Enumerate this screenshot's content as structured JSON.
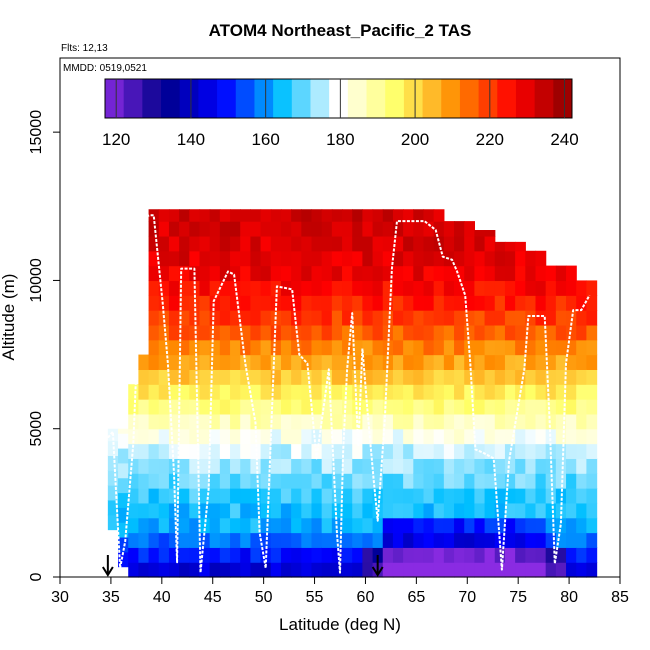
{
  "chart_data": {
    "type": "heatmap",
    "title": "ATOM4 Northeast_Pacific_2 TAS",
    "annotations": [
      "Flts: 12,13",
      "MMDD: 0519,0521"
    ],
    "xlabel": "Latitude (deg N)",
    "ylabel": "Altitude (m)",
    "xlim": [
      30,
      85
    ],
    "ylim": [
      0,
      17500
    ],
    "xticks": [
      30,
      35,
      40,
      45,
      50,
      55,
      60,
      65,
      70,
      75,
      80,
      85
    ],
    "yticks": [
      0,
      5000,
      10000,
      15000
    ],
    "colorbar": {
      "min": 117,
      "max": 242,
      "ticks": [
        120,
        140,
        160,
        180,
        200,
        220,
        240
      ],
      "colors": [
        "#8a2be2",
        "#00008b",
        "#0000ff",
        "#00bfff",
        "#ffffff",
        "#ffff66",
        "#ff8c00",
        "#ff0000",
        "#8b0000"
      ]
    },
    "arrows_at_latitude": [
      34.7,
      61.2
    ],
    "flight_track": {
      "lat": [
        34.7,
        35.2,
        35.9,
        36.4,
        37.2,
        38.1,
        38.8,
        39.2,
        40.1,
        40.6,
        41.2,
        41.5,
        41.9,
        43.2,
        43.8,
        44.6,
        45.1,
        46.5,
        47.1,
        48.2,
        49.2,
        49.6,
        50.2,
        51.3,
        52.8,
        53.5,
        54.3,
        55.2,
        56.4,
        57.2,
        57.5,
        57.8,
        58.2,
        58.7,
        59.3,
        59.7,
        60.2,
        60.8,
        61.2,
        61.9,
        62.6,
        63.1,
        64.0,
        65.8,
        66.9,
        67.6,
        68.5,
        69.0,
        69.8,
        70.3,
        70.8,
        71.5,
        72.6,
        73.4,
        74.1,
        75.6,
        76.0,
        76.8,
        77.6,
        78.1,
        78.6,
        79.2,
        79.7,
        80.4,
        81.2,
        82.0
      ],
      "alt": [
        4700,
        4900,
        300,
        1200,
        4500,
        12100,
        12200,
        12200,
        9200,
        7200,
        3500,
        500,
        10400,
        10400,
        150,
        3000,
        9300,
        10300,
        10200,
        7200,
        5200,
        1500,
        300,
        9800,
        9700,
        7500,
        7200,
        4000,
        7000,
        1500,
        150,
        4200,
        7000,
        8900,
        4400,
        7700,
        5600,
        3300,
        1900,
        5300,
        10400,
        12000,
        12000,
        12000,
        11700,
        10800,
        10700,
        10300,
        9500,
        7200,
        4300,
        4200,
        4000,
        250,
        3900,
        7000,
        8800,
        8800,
        8800,
        5200,
        450,
        1800,
        7200,
        9000,
        9000,
        9500
      ]
    }
  }
}
